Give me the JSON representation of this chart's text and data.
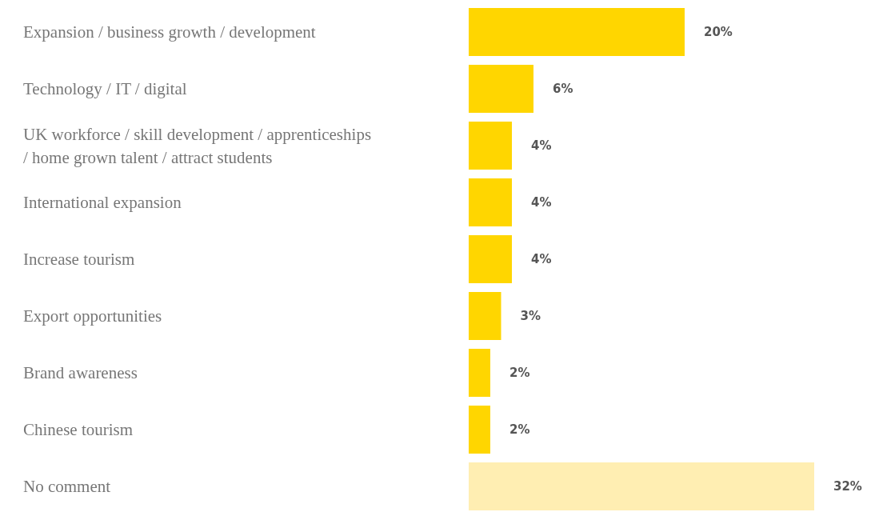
{
  "chart_data": {
    "type": "bar",
    "orientation": "horizontal",
    "categories": [
      "Expansion / business growth / development",
      "Technology / IT / digital",
      "UK workforce / skill development / apprenticeships / home grown talent / attract students",
      "International expansion",
      "Increase tourism",
      "Export opportunities",
      "Brand awareness",
      "Chinese tourism",
      "No comment"
    ],
    "values": [
      20,
      6,
      4,
      4,
      4,
      3,
      2,
      2,
      32
    ],
    "colors": [
      "#ffd600",
      "#ffd600",
      "#ffd600",
      "#ffd600",
      "#ffd600",
      "#ffd600",
      "#ffd600",
      "#ffd600",
      "#ffeeb2"
    ],
    "value_labels": [
      "20%",
      "6%",
      "4%",
      "4%",
      "4%",
      "3%",
      "2%",
      "2%",
      "32%"
    ],
    "xlim": [
      0,
      32
    ]
  }
}
